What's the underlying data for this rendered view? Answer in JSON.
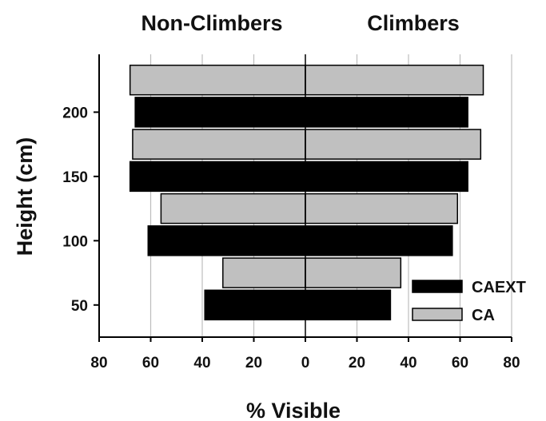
{
  "chart_data": {
    "type": "bar",
    "orientation": "horizontal",
    "layout": "back-to-back",
    "panels": [
      {
        "title": "Non-Climbers",
        "side": "left"
      },
      {
        "title": "Climbers",
        "side": "right"
      }
    ],
    "xlabel": "% Visible",
    "ylabel": "Height (cm)",
    "xlim": [
      0,
      80
    ],
    "ylim": [
      25,
      245
    ],
    "xticks": [
      80,
      60,
      40,
      20,
      0,
      20,
      40,
      60,
      80
    ],
    "yticks": [
      50,
      100,
      150,
      200
    ],
    "grid": {
      "vertical": true,
      "horizontal": false
    },
    "legend_position": "bottom-right",
    "series": [
      {
        "name": "CAEXT",
        "color": "#000000",
        "heights": [
          50,
          100,
          150,
          200
        ],
        "non_climbers": [
          39,
          61,
          68,
          66
        ],
        "climbers": [
          33,
          57,
          63,
          63
        ]
      },
      {
        "name": "CA",
        "color": "#c0c0c0",
        "heights": [
          75,
          125,
          175,
          225
        ],
        "non_climbers": [
          32,
          56,
          67,
          68
        ],
        "climbers": [
          37,
          59,
          68,
          69
        ]
      }
    ]
  }
}
